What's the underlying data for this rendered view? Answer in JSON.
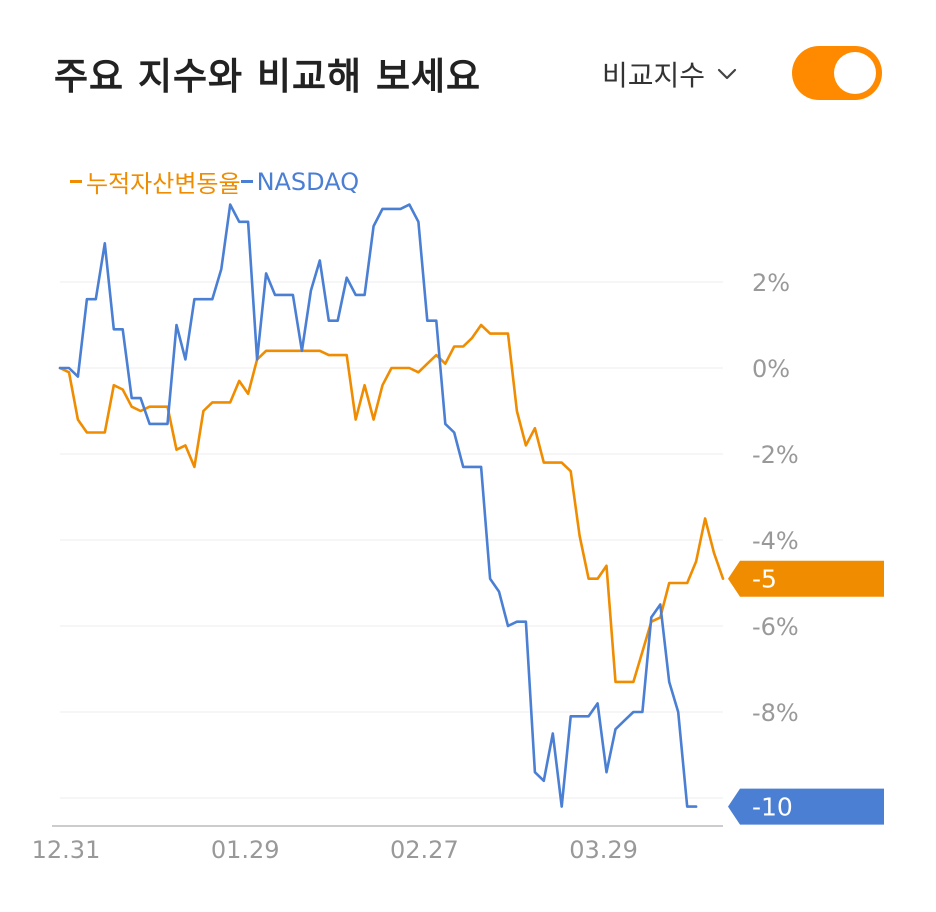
{
  "header": {
    "title": "주요 지수와 비교해 보세요",
    "compare_label": "비교지수",
    "toggle_on": true
  },
  "colors": {
    "fund": "#f08c00",
    "index": "#4a7fd4",
    "grid": "#eeeeee",
    "axis": "#bbbbbb",
    "tick_text": "#999999"
  },
  "chart_data": {
    "type": "line",
    "legend_placement": "top-left",
    "grid": true,
    "ylim": [
      -10.3,
      3.8
    ],
    "yticks": [
      "2%",
      "0%",
      "-2%",
      "-4%",
      "-6%",
      "-8%"
    ],
    "ytick_values": [
      2,
      0,
      -2,
      -4,
      -6,
      -8
    ],
    "xtick_labels": [
      "12.31",
      "01.29",
      "02.27",
      "03.29"
    ],
    "xtick_index": [
      0,
      20,
      40,
      60
    ],
    "series": [
      {
        "name": "누적자산변동율",
        "end_label": "-5",
        "values": [
          0,
          -0.1,
          -1.2,
          -1.5,
          -1.5,
          -1.5,
          -0.4,
          -0.5,
          -0.9,
          -1.0,
          -0.9,
          -0.9,
          -0.9,
          -1.9,
          -1.8,
          -2.3,
          -1.0,
          -0.8,
          -0.8,
          -0.8,
          -0.3,
          -0.6,
          0.2,
          0.4,
          0.4,
          0.4,
          0.4,
          0.4,
          0.4,
          0.4,
          0.3,
          0.3,
          0.3,
          -1.2,
          -0.4,
          -1.2,
          -0.4,
          0,
          0,
          0,
          -0.1,
          0.1,
          0.3,
          0.1,
          0.5,
          0.5,
          0.7,
          1.0,
          0.8,
          0.8,
          0.8,
          -1.0,
          -1.8,
          -1.4,
          -2.2,
          -2.2,
          -2.2,
          -2.4,
          -3.9,
          -4.9,
          -4.9,
          -4.6,
          -7.3,
          -7.3,
          -7.3,
          -6.6,
          -5.9,
          -5.8,
          -5.0,
          -5.0,
          -5.0,
          -4.5,
          -3.5,
          -4.3,
          -4.9
        ]
      },
      {
        "name": "NASDAQ",
        "end_label": "-10",
        "values": [
          0,
          0,
          -0.2,
          1.6,
          1.6,
          2.9,
          0.9,
          0.9,
          -0.7,
          -0.7,
          -1.3,
          -1.3,
          -1.3,
          1.0,
          0.2,
          1.6,
          1.6,
          1.6,
          2.3,
          3.8,
          3.4,
          3.4,
          0.2,
          2.2,
          1.7,
          1.7,
          1.7,
          0.4,
          1.8,
          2.5,
          1.1,
          1.1,
          2.1,
          1.7,
          1.7,
          3.3,
          3.7,
          3.7,
          3.7,
          3.8,
          3.4,
          1.1,
          1.1,
          -1.3,
          -1.5,
          -2.3,
          -2.3,
          -2.3,
          -4.9,
          -5.2,
          -6.0,
          -5.9,
          -5.9,
          -9.4,
          -9.6,
          -8.5,
          -10.2,
          -8.1,
          -8.1,
          -8.1,
          -7.8,
          -9.4,
          -8.4,
          -8.2,
          -8.0,
          -8.0,
          -5.8,
          -5.5,
          -7.3,
          -8.0,
          -10.2,
          -10.2
        ]
      }
    ]
  }
}
